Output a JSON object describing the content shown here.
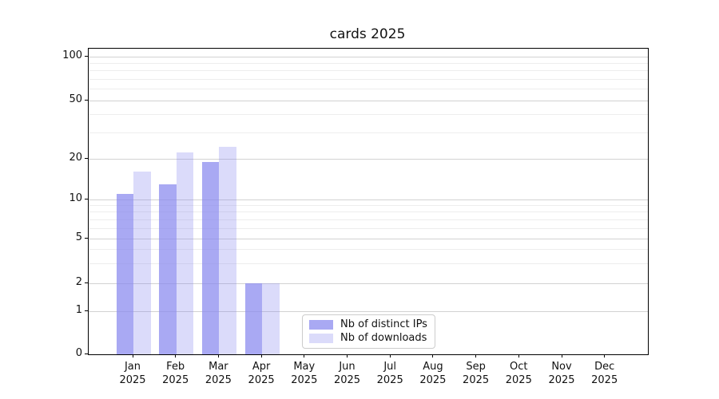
{
  "chart_data": {
    "type": "bar",
    "title": "cards 2025",
    "x_categories": [
      "Jan",
      "Feb",
      "Mar",
      "Apr",
      "May",
      "Jun",
      "Jul",
      "Aug",
      "Sep",
      "Oct",
      "Nov",
      "Dec"
    ],
    "year_label": "2025",
    "series": [
      {
        "name": "Nb of distinct IPs",
        "color": "#8888ee",
        "alpha": 0.72,
        "values": [
          11,
          13,
          19,
          2,
          0,
          0,
          0,
          0,
          0,
          0,
          0,
          0
        ]
      },
      {
        "name": "Nb of downloads",
        "color": "#8888ee",
        "alpha": 0.3,
        "values": [
          16,
          22,
          24,
          2,
          0,
          0,
          0,
          0,
          0,
          0,
          0,
          0
        ]
      }
    ],
    "y_ticks": [
      0,
      1,
      2,
      5,
      10,
      20,
      50,
      100
    ],
    "y_minor_ticks": [
      3,
      4,
      6,
      7,
      8,
      9,
      30,
      40,
      60,
      70,
      80,
      90
    ],
    "ylim": [
      0,
      110
    ],
    "scale": "symlog",
    "grid": true,
    "legend": {
      "position": "lower-center",
      "items": [
        "Nb of distinct IPs",
        "Nb of downloads"
      ]
    }
  }
}
